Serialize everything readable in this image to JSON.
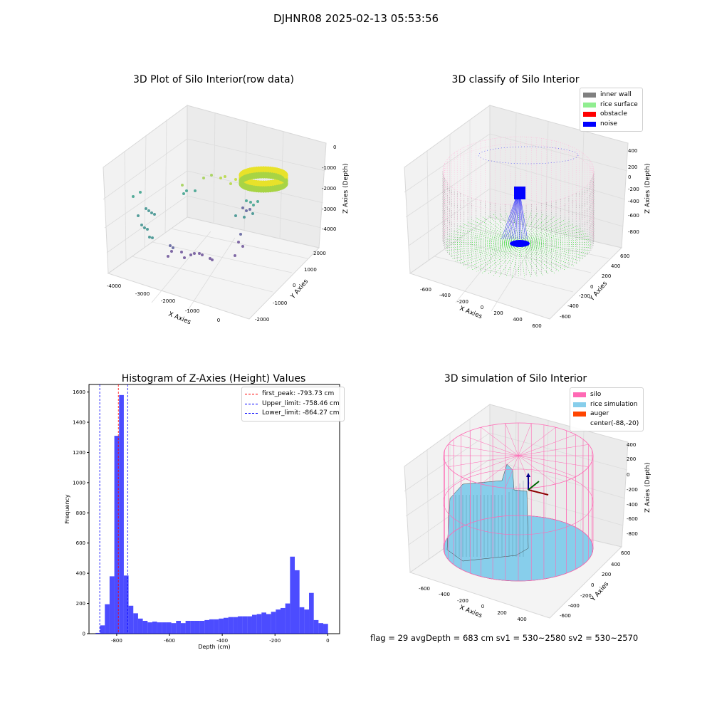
{
  "suptitle": "DJHNR08 2025-02-13 05:53:56",
  "panel1": {
    "title": "3D Plot of Silo Interior(row data)",
    "xlabel": "X Axies",
    "ylabel": "Y Axies",
    "zlabel": "Z Axies (Depth)",
    "xticks": [
      "-4000",
      "-3000",
      "-2000",
      "-1000",
      "0"
    ],
    "yticks": [
      "2000",
      "1000",
      "0",
      "-1000",
      "-2000"
    ],
    "zticks": [
      "0",
      "-1000",
      "-2000",
      "-3000",
      "-4000"
    ]
  },
  "panel2": {
    "title": "3D classify of Silo Interior",
    "xlabel": "X Axies",
    "ylabel": "Y Axies",
    "zlabel": "Z Axies (Depth)",
    "xticks": [
      "-600",
      "-400",
      "-200",
      "0",
      "200",
      "400",
      "600"
    ],
    "yticks": [
      "600",
      "400",
      "200",
      "0",
      "-200",
      "-400",
      "-600"
    ],
    "zticks": [
      "400",
      "200",
      "0",
      "-200",
      "-400",
      "-600",
      "-800"
    ],
    "legend": [
      {
        "label": "inner wall",
        "color": "#808080"
      },
      {
        "label": "rice surface",
        "color": "#90ee90"
      },
      {
        "label": "obstacle",
        "color": "#ff0000"
      },
      {
        "label": "noise",
        "color": "#0000ff"
      }
    ]
  },
  "panel4": {
    "title": "3D simulation of Silo Interior",
    "xlabel": "X Axies",
    "ylabel": "Y Axies",
    "zlabel": "Z Axies (Depth)",
    "xticks": [
      "-600",
      "-400",
      "-200",
      "0",
      "200",
      "400"
    ],
    "yticks": [
      "600",
      "400",
      "200",
      "0",
      "-200",
      "-400",
      "-600"
    ],
    "zticks": [
      "400",
      "200",
      "0",
      "-200",
      "-400",
      "-600",
      "-800"
    ],
    "legend": [
      {
        "label": "silo",
        "color": "#ff69b4"
      },
      {
        "label": "rice simulation",
        "color": "#87ceeb"
      },
      {
        "label": "auger",
        "color": "#ff4500"
      },
      {
        "label": "center(-88,-20)",
        "color": ""
      }
    ]
  },
  "status_line": "flag = 29  avgDepth = 683 cm  sv1 = 530~2580  sv2 = 530~2570",
  "chart_data": [
    {
      "type": "bar",
      "title": "Histogram of Z-Axies (Height) Values",
      "xlabel": "Depth (cm)",
      "ylabel": "Frequency",
      "xlim": [
        -905,
        45
      ],
      "ylim": [
        0,
        1650
      ],
      "xticks": [
        -800,
        -600,
        -400,
        -200,
        0
      ],
      "yticks": [
        0,
        200,
        400,
        600,
        800,
        1000,
        1200,
        1400,
        1600
      ],
      "bar_color": "#0000ff",
      "bins": [
        {
          "x0": -880,
          "x1": -863,
          "value": 5
        },
        {
          "x0": -863,
          "x1": -845,
          "value": 55
        },
        {
          "x0": -845,
          "x1": -827,
          "value": 195
        },
        {
          "x0": -827,
          "x1": -809,
          "value": 380
        },
        {
          "x0": -809,
          "x1": -791,
          "value": 1310
        },
        {
          "x0": -791,
          "x1": -773,
          "value": 1580
        },
        {
          "x0": -773,
          "x1": -755,
          "value": 385
        },
        {
          "x0": -755,
          "x1": -737,
          "value": 185
        },
        {
          "x0": -737,
          "x1": -719,
          "value": 135
        },
        {
          "x0": -719,
          "x1": -701,
          "value": 100
        },
        {
          "x0": -701,
          "x1": -683,
          "value": 85
        },
        {
          "x0": -683,
          "x1": -665,
          "value": 75
        },
        {
          "x0": -665,
          "x1": -647,
          "value": 80
        },
        {
          "x0": -647,
          "x1": -629,
          "value": 75
        },
        {
          "x0": -629,
          "x1": -611,
          "value": 75
        },
        {
          "x0": -611,
          "x1": -593,
          "value": 75
        },
        {
          "x0": -593,
          "x1": -575,
          "value": 70
        },
        {
          "x0": -575,
          "x1": -557,
          "value": 85
        },
        {
          "x0": -557,
          "x1": -539,
          "value": 70
        },
        {
          "x0": -539,
          "x1": -521,
          "value": 85
        },
        {
          "x0": -521,
          "x1": -503,
          "value": 85
        },
        {
          "x0": -503,
          "x1": -485,
          "value": 85
        },
        {
          "x0": -485,
          "x1": -467,
          "value": 85
        },
        {
          "x0": -467,
          "x1": -449,
          "value": 90
        },
        {
          "x0": -449,
          "x1": -431,
          "value": 95
        },
        {
          "x0": -431,
          "x1": -413,
          "value": 95
        },
        {
          "x0": -413,
          "x1": -395,
          "value": 100
        },
        {
          "x0": -395,
          "x1": -377,
          "value": 105
        },
        {
          "x0": -377,
          "x1": -359,
          "value": 110
        },
        {
          "x0": -359,
          "x1": -341,
          "value": 110
        },
        {
          "x0": -341,
          "x1": -323,
          "value": 115
        },
        {
          "x0": -323,
          "x1": -305,
          "value": 115
        },
        {
          "x0": -305,
          "x1": -287,
          "value": 115
        },
        {
          "x0": -287,
          "x1": -269,
          "value": 125
        },
        {
          "x0": -269,
          "x1": -251,
          "value": 130
        },
        {
          "x0": -251,
          "x1": -233,
          "value": 140
        },
        {
          "x0": -233,
          "x1": -215,
          "value": 130
        },
        {
          "x0": -215,
          "x1": -197,
          "value": 145
        },
        {
          "x0": -197,
          "x1": -179,
          "value": 160
        },
        {
          "x0": -179,
          "x1": -161,
          "value": 170
        },
        {
          "x0": -161,
          "x1": -143,
          "value": 200
        },
        {
          "x0": -143,
          "x1": -125,
          "value": 510
        },
        {
          "x0": -125,
          "x1": -107,
          "value": 420
        },
        {
          "x0": -107,
          "x1": -89,
          "value": 175
        },
        {
          "x0": -89,
          "x1": -71,
          "value": 160
        },
        {
          "x0": -71,
          "x1": -53,
          "value": 270
        },
        {
          "x0": -53,
          "x1": -35,
          "value": 90
        },
        {
          "x0": -35,
          "x1": -17,
          "value": 70
        },
        {
          "x0": -17,
          "x1": 1,
          "value": 65
        }
      ],
      "vlines": [
        {
          "label": "first_peak: -793.73 cm",
          "x": -793.73,
          "color": "#ff0000"
        },
        {
          "label": "Upper_limit: -758.46 cm",
          "x": -758.46,
          "color": "#0000ff"
        },
        {
          "label": "Lower_limit: -864.27 cm",
          "x": -864.27,
          "color": "#0000ff"
        }
      ]
    }
  ]
}
